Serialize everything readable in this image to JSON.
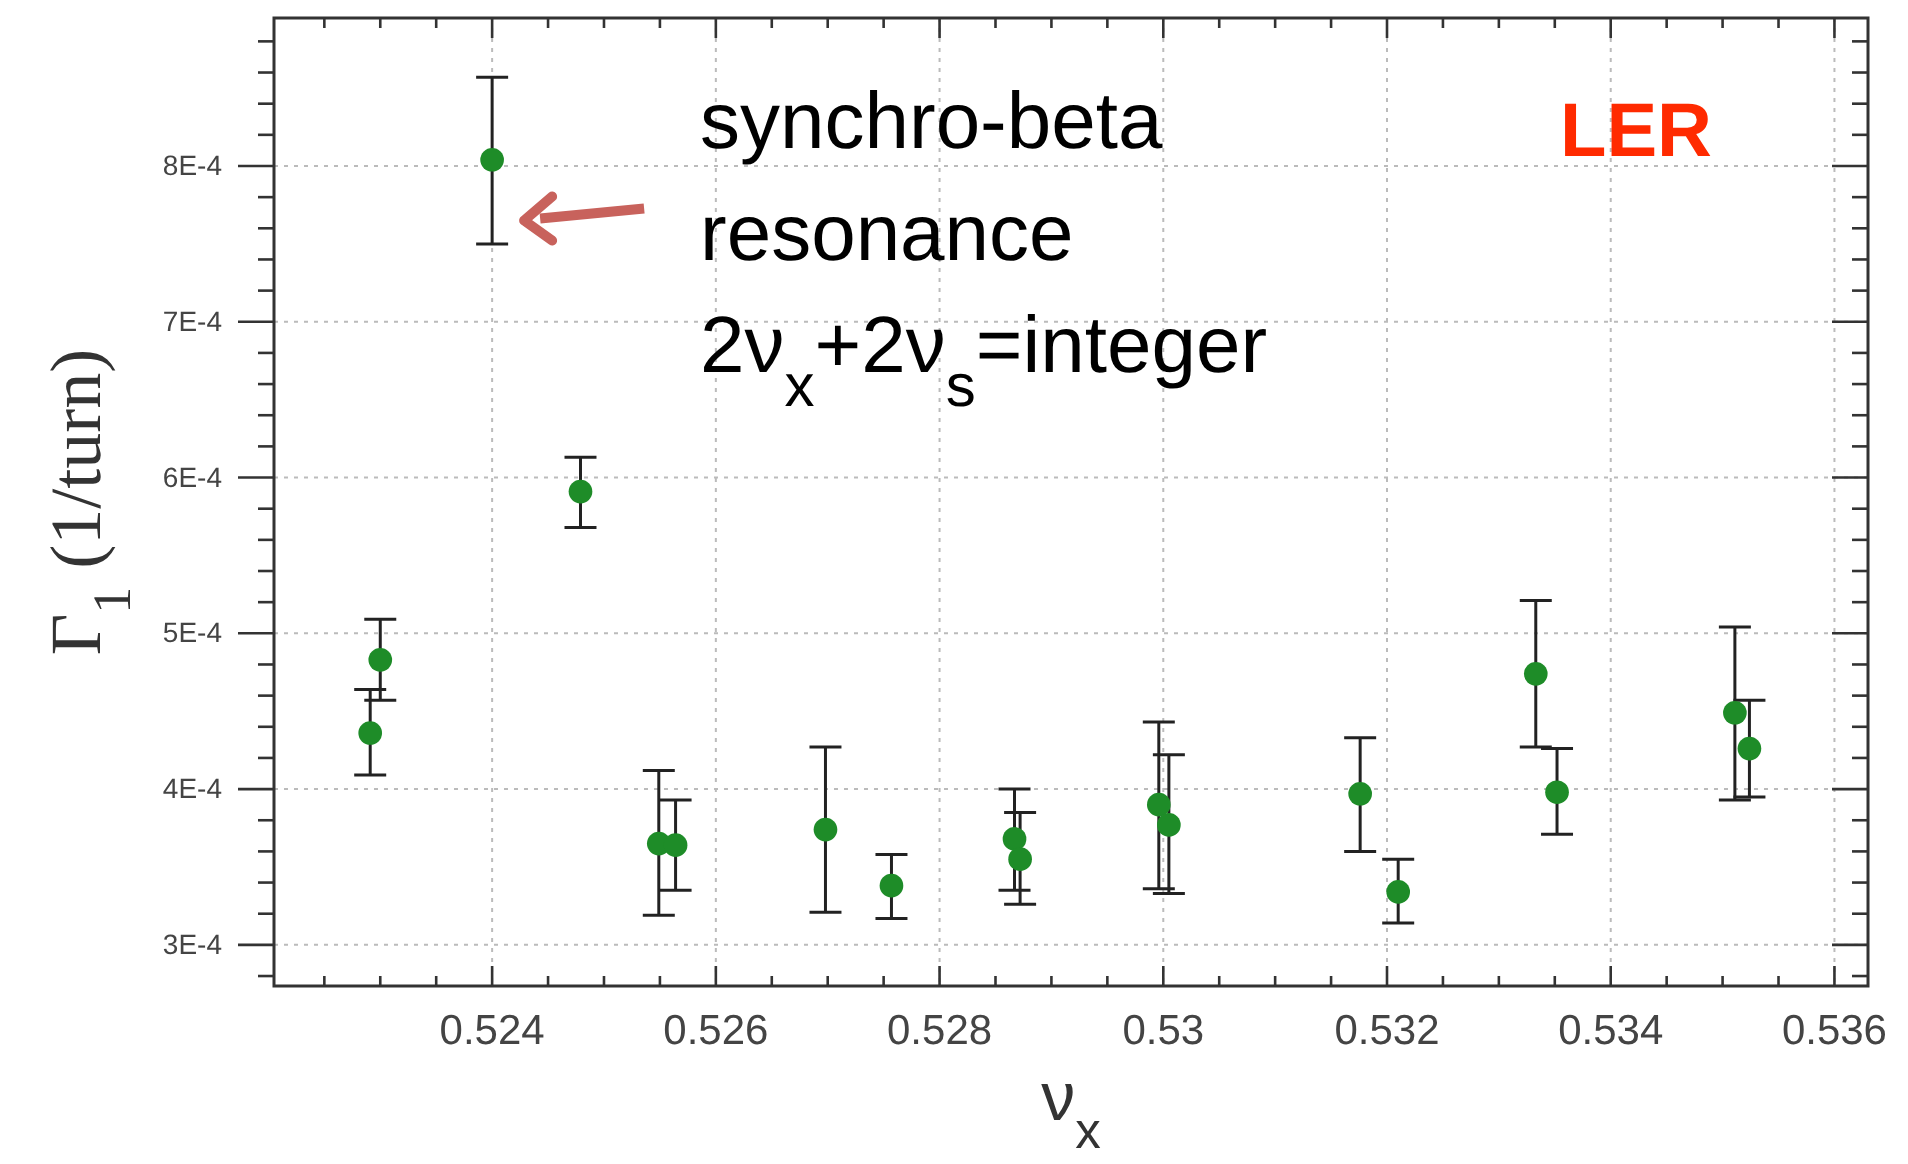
{
  "chart_data": {
    "type": "scatter",
    "xlabel": "ν$_{x}$",
    "ylabel": "Γ$_{1}$ (1/turn)",
    "x": [
      0.52291,
      0.523,
      0.524,
      0.52479,
      0.52549,
      0.52564,
      0.52698,
      0.52757,
      0.52867,
      0.52872,
      0.52996,
      0.53005,
      0.53176,
      0.5321,
      0.53333,
      0.53352,
      0.53511,
      0.53524
    ],
    "series": [
      {
        "color": "#1e8c28",
        "values": [
          0.000436,
          0.000483,
          0.000804,
          0.000591,
          0.000365,
          0.000364,
          0.000374,
          0.000338,
          0.000368,
          0.000355,
          0.00039,
          0.000377,
          0.000397,
          0.000334,
          0.000474,
          0.000398,
          0.000449,
          0.000426
        ],
        "errors": [
          [
            0.000409,
            0.000464
          ],
          [
            0.000457,
            0.000509
          ],
          [
            0.00075,
            0.000857
          ],
          [
            0.000568,
            0.000613
          ],
          [
            0.000319,
            0.000412
          ],
          [
            0.000335,
            0.000393
          ],
          [
            0.000321,
            0.000427
          ],
          [
            0.000317,
            0.000358
          ],
          [
            0.000335,
            0.0004
          ],
          [
            0.000326,
            0.000385
          ],
          [
            0.000336,
            0.000443
          ],
          [
            0.000333,
            0.000422
          ],
          [
            0.00036,
            0.000433
          ],
          [
            0.000314,
            0.000355
          ],
          [
            0.000427,
            0.000521
          ],
          [
            0.000371,
            0.000426
          ],
          [
            0.000393,
            0.000504
          ],
          [
            0.000395,
            0.000457
          ]
        ]
      }
    ],
    "marker": "circle",
    "grid": true,
    "xlim": [
      0.52205,
      0.5363
    ],
    "xticks": [
      {
        "value": 0.5225,
        "label": null
      },
      {
        "value": 0.523,
        "label": null
      },
      {
        "value": 0.5235,
        "label": null
      },
      0.524,
      {
        "value": 0.5245,
        "label": null
      },
      {
        "value": 0.525,
        "label": null
      },
      {
        "value": 0.5255,
        "label": null
      },
      0.526,
      {
        "value": 0.5265,
        "label": null
      },
      {
        "value": 0.527,
        "label": null
      },
      {
        "value": 0.5275,
        "label": null
      },
      0.528,
      {
        "value": 0.5285,
        "label": null
      },
      {
        "value": 0.529,
        "label": null
      },
      {
        "value": 0.5295,
        "label": null
      },
      0.53,
      {
        "value": 0.5305,
        "label": null
      },
      {
        "value": 0.531,
        "label": null
      },
      {
        "value": 0.5315,
        "label": null
      },
      0.532,
      {
        "value": 0.5325,
        "label": null
      },
      {
        "value": 0.533,
        "label": null
      },
      {
        "value": 0.5335,
        "label": null
      },
      0.534,
      {
        "value": 0.5345,
        "label": null
      },
      {
        "value": 0.535,
        "label": null
      },
      {
        "value": 0.5355,
        "label": null
      },
      0.536
    ],
    "ylim": [
      0.0002736,
      0.000895
    ],
    "yticks": [
      {
        "value": 0.00028,
        "label": null
      },
      {
        "value": 0.0003,
        "label": "3E-4"
      },
      {
        "value": 0.00032,
        "label": null
      },
      {
        "value": 0.00034,
        "label": null
      },
      {
        "value": 0.00036,
        "label": null
      },
      {
        "value": 0.00038,
        "label": null
      },
      {
        "value": 0.0004,
        "label": "4E-4"
      },
      {
        "value": 0.00042,
        "label": null
      },
      {
        "value": 0.00044,
        "label": null
      },
      {
        "value": 0.00046,
        "label": null
      },
      {
        "value": 0.00048,
        "label": null
      },
      {
        "value": 0.0005,
        "label": "5E-4"
      },
      {
        "value": 0.00052,
        "label": null
      },
      {
        "value": 0.00054,
        "label": null
      },
      {
        "value": 0.00056,
        "label": null
      },
      {
        "value": 0.00058,
        "label": null
      },
      {
        "value": 0.0006,
        "label": "6E-4"
      },
      {
        "value": 0.00062,
        "label": null
      },
      {
        "value": 0.00064,
        "label": null
      },
      {
        "value": 0.00066,
        "label": null
      },
      {
        "value": 0.00068,
        "label": null
      },
      {
        "value": 0.0007,
        "label": "7E-4"
      },
      {
        "value": 0.00072,
        "label": null
      },
      {
        "value": 0.00074,
        "label": null
      },
      {
        "value": 0.00076,
        "label": null
      },
      {
        "value": 0.00078,
        "label": null
      },
      {
        "value": 0.0008,
        "label": "8E-4"
      },
      {
        "value": 0.00082,
        "label": null
      },
      {
        "value": 0.00084,
        "label": null
      },
      {
        "value": 0.00086,
        "label": null
      },
      {
        "value": 0.00088,
        "label": null
      }
    ],
    "annotations": [
      {
        "text": "synchro-beta\nresonance\n2ν$_{x}$+2ν$_{s}$=integer",
        "x": 0.524,
        "y": 0.000765
      },
      "LER"
    ]
  }
}
